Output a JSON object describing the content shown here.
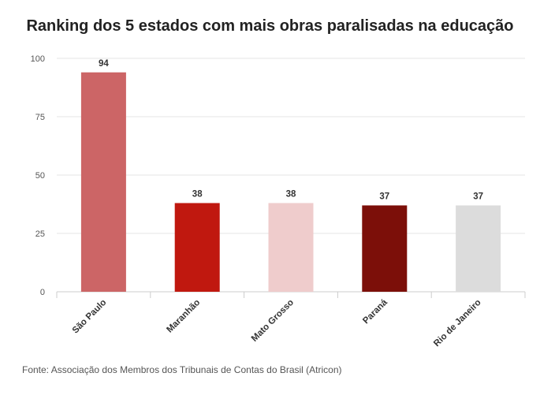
{
  "title": "Ranking dos 5 estados com mais obras paralisadas na educação",
  "source": "Fonte: Associação dos Membros dos Tribunais de Contas do Brasil (Atricon)",
  "chart_data": {
    "type": "bar",
    "title": "Ranking dos 5 estados com mais obras paralisadas na educação",
    "categories": [
      "São Paulo",
      "Maranhão",
      "Mato Grosso",
      "Paraná",
      "Rio de Janeiro"
    ],
    "values": [
      94,
      38,
      38,
      37,
      37
    ],
    "colors": [
      "#cc6566",
      "#c0180f",
      "#efcccc",
      "#7c0f09",
      "#dcdcdc"
    ],
    "ylim": [
      0,
      100
    ],
    "yticks": [
      0,
      25,
      50,
      75,
      100
    ],
    "grid": true,
    "data_labels": true,
    "xlabel": "",
    "ylabel": ""
  }
}
